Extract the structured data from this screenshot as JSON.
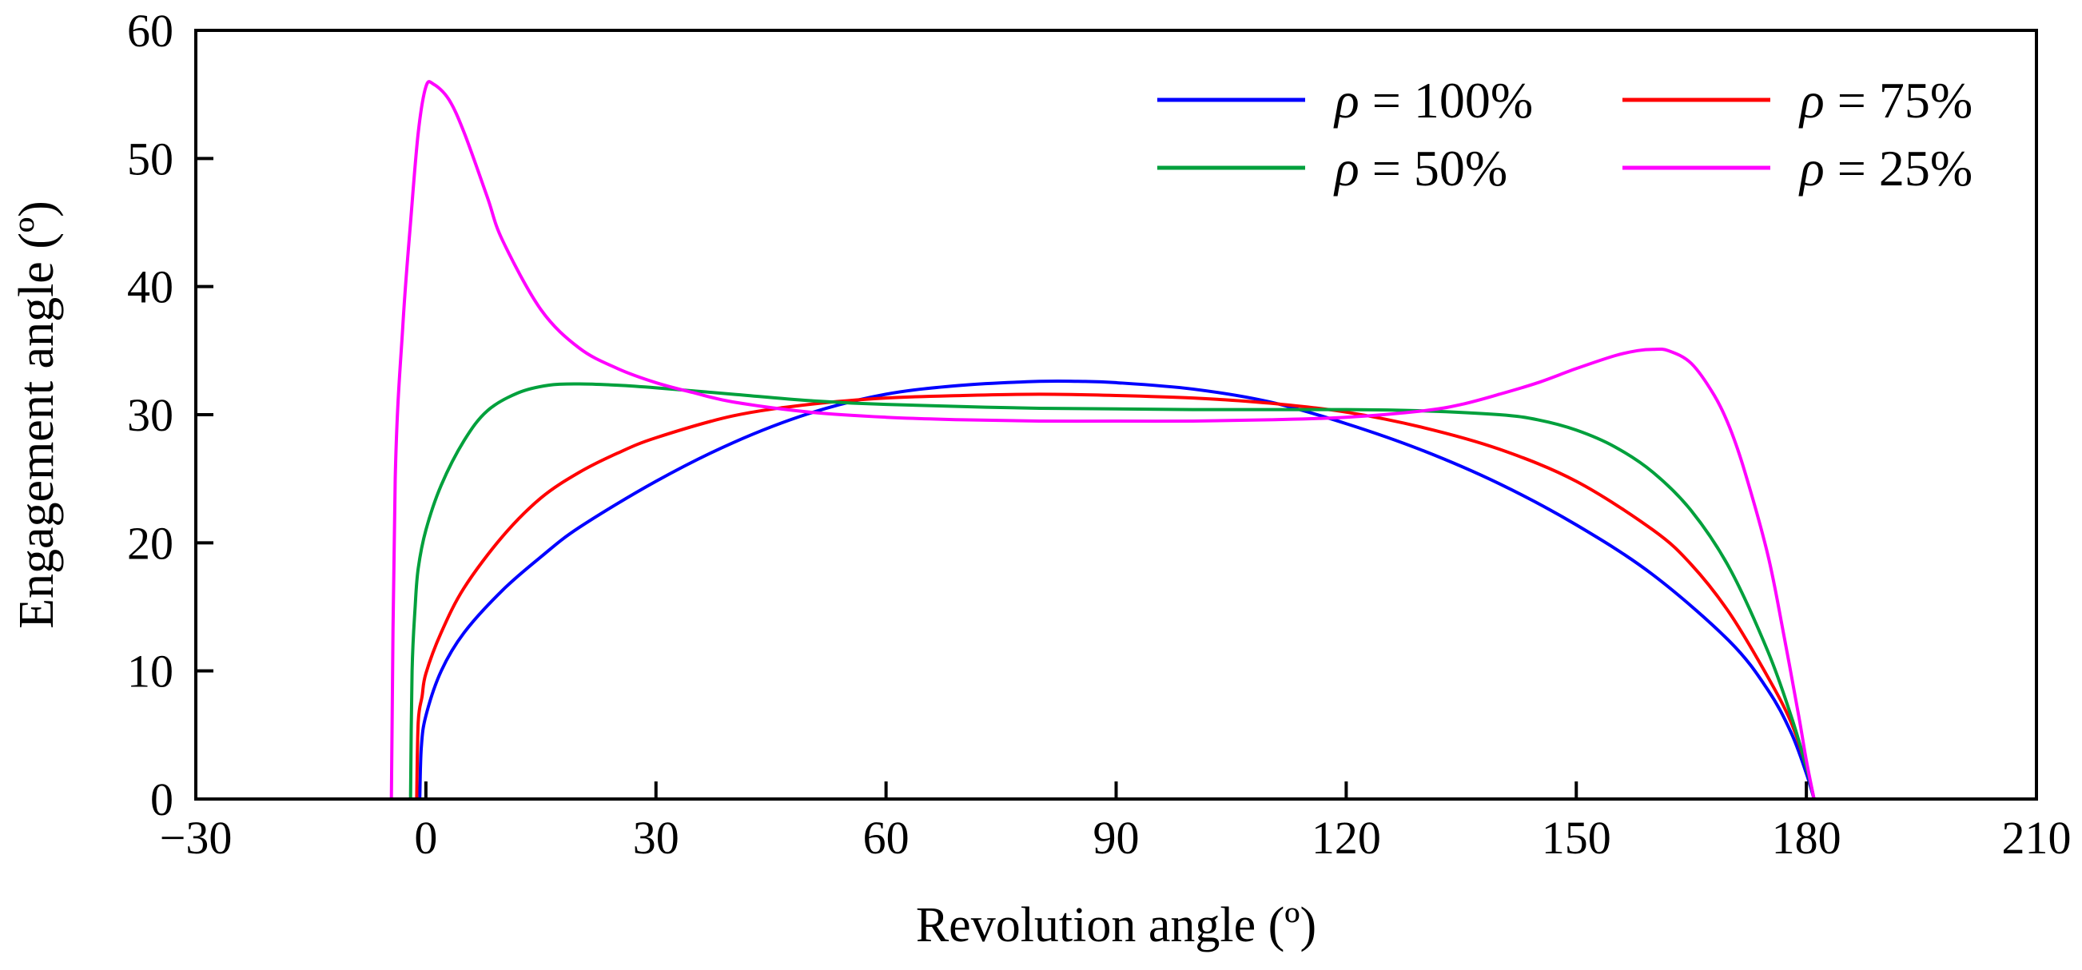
{
  "chart_data": {
    "type": "line",
    "xlabel": "Revolution angle (º)",
    "ylabel": "Engagement angle (º)",
    "xlim": [
      -30,
      210
    ],
    "ylim": [
      0,
      60
    ],
    "xticks": [
      -30,
      0,
      30,
      60,
      90,
      120,
      150,
      180,
      210
    ],
    "xtick_labels": [
      "−30",
      "0",
      "30",
      "60",
      "90",
      "120",
      "150",
      "180",
      "210"
    ],
    "yticks": [
      0,
      10,
      20,
      30,
      40,
      50,
      60
    ],
    "ytick_labels": [
      "0",
      "10",
      "20",
      "30",
      "40",
      "50",
      "60"
    ],
    "grid": false,
    "legend_position": "top-right",
    "series": [
      {
        "name": "100%",
        "legend_prefix": "ρ",
        "color": "#0000ff",
        "points": [
          [
            -0.8,
            0
          ],
          [
            -0.6,
            4
          ],
          [
            0,
            6.5
          ],
          [
            2,
            10
          ],
          [
            5,
            13
          ],
          [
            10,
            16.3
          ],
          [
            15,
            18.9
          ],
          [
            20,
            21.2
          ],
          [
            30,
            24.8
          ],
          [
            40,
            27.8
          ],
          [
            50,
            30.1
          ],
          [
            60,
            31.6
          ],
          [
            70,
            32.3
          ],
          [
            80,
            32.6
          ],
          [
            85,
            32.6
          ],
          [
            90,
            32.5
          ],
          [
            100,
            32
          ],
          [
            110,
            31
          ],
          [
            120,
            29.3
          ],
          [
            130,
            27.2
          ],
          [
            140,
            24.6
          ],
          [
            150,
            21.4
          ],
          [
            160,
            17.5
          ],
          [
            170,
            12.3
          ],
          [
            175,
            8.5
          ],
          [
            178,
            5.2
          ],
          [
            180,
            2
          ],
          [
            181,
            0
          ]
        ]
      },
      {
        "name": "75%",
        "legend_prefix": "ρ",
        "color": "#ff0000",
        "points": [
          [
            -1.2,
            0
          ],
          [
            -1,
            6
          ],
          [
            -0.5,
            8
          ],
          [
            0,
            9.8
          ],
          [
            2,
            13
          ],
          [
            5,
            16.5
          ],
          [
            10,
            20.5
          ],
          [
            15,
            23.5
          ],
          [
            20,
            25.5
          ],
          [
            25,
            27
          ],
          [
            30,
            28.2
          ],
          [
            40,
            29.9
          ],
          [
            50,
            30.8
          ],
          [
            60,
            31.3
          ],
          [
            70,
            31.5
          ],
          [
            80,
            31.6
          ],
          [
            90,
            31.5
          ],
          [
            100,
            31.3
          ],
          [
            110,
            30.9
          ],
          [
            120,
            30.2
          ],
          [
            130,
            29
          ],
          [
            140,
            27.3
          ],
          [
            150,
            24.8
          ],
          [
            160,
            21
          ],
          [
            165,
            18.3
          ],
          [
            170,
            14.5
          ],
          [
            175,
            9.5
          ],
          [
            178,
            6
          ],
          [
            180,
            2.5
          ],
          [
            181,
            0
          ]
        ]
      },
      {
        "name": "50%",
        "legend_prefix": "ρ",
        "color": "#00a03c",
        "points": [
          [
            -2,
            0
          ],
          [
            -1.8,
            10
          ],
          [
            -1.4,
            15
          ],
          [
            -1,
            18
          ],
          [
            0,
            21
          ],
          [
            2,
            24.5
          ],
          [
            5,
            28
          ],
          [
            8,
            30.3
          ],
          [
            12,
            31.7
          ],
          [
            16,
            32.3
          ],
          [
            20,
            32.4
          ],
          [
            25,
            32.3
          ],
          [
            30,
            32.1
          ],
          [
            40,
            31.6
          ],
          [
            50,
            31.1
          ],
          [
            60,
            30.8
          ],
          [
            80,
            30.5
          ],
          [
            100,
            30.4
          ],
          [
            120,
            30.4
          ],
          [
            130,
            30.3
          ],
          [
            140,
            30
          ],
          [
            145,
            29.6
          ],
          [
            150,
            28.8
          ],
          [
            155,
            27.5
          ],
          [
            160,
            25.5
          ],
          [
            165,
            22.5
          ],
          [
            170,
            18
          ],
          [
            175,
            11.5
          ],
          [
            178,
            6.5
          ],
          [
            180,
            2.5
          ],
          [
            181,
            0
          ]
        ]
      },
      {
        "name": "25%",
        "legend_prefix": "ρ",
        "color": "#ff00ff",
        "points": [
          [
            -4.5,
            0
          ],
          [
            -4,
            25
          ],
          [
            -3,
            37
          ],
          [
            -2,
            45
          ],
          [
            -1,
            52
          ],
          [
            0,
            55.6
          ],
          [
            1,
            55.8
          ],
          [
            3,
            54.6
          ],
          [
            5,
            52
          ],
          [
            8,
            47
          ],
          [
            10,
            43.6
          ],
          [
            15,
            38.2
          ],
          [
            20,
            35.2
          ],
          [
            25,
            33.6
          ],
          [
            30,
            32.5
          ],
          [
            35,
            31.7
          ],
          [
            40,
            31
          ],
          [
            50,
            30.2
          ],
          [
            60,
            29.8
          ],
          [
            70,
            29.6
          ],
          [
            80,
            29.5
          ],
          [
            90,
            29.5
          ],
          [
            100,
            29.5
          ],
          [
            110,
            29.6
          ],
          [
            120,
            29.8
          ],
          [
            130,
            30.3
          ],
          [
            135,
            30.8
          ],
          [
            140,
            31.6
          ],
          [
            145,
            32.5
          ],
          [
            150,
            33.6
          ],
          [
            155,
            34.6
          ],
          [
            158,
            35
          ],
          [
            160,
            35.1
          ],
          [
            162,
            35
          ],
          [
            165,
            34
          ],
          [
            168,
            31.5
          ],
          [
            170,
            29
          ],
          [
            172,
            25.5
          ],
          [
            175,
            19
          ],
          [
            177,
            13
          ],
          [
            179,
            6.5
          ],
          [
            180,
            3
          ],
          [
            181,
            0
          ]
        ]
      }
    ]
  }
}
